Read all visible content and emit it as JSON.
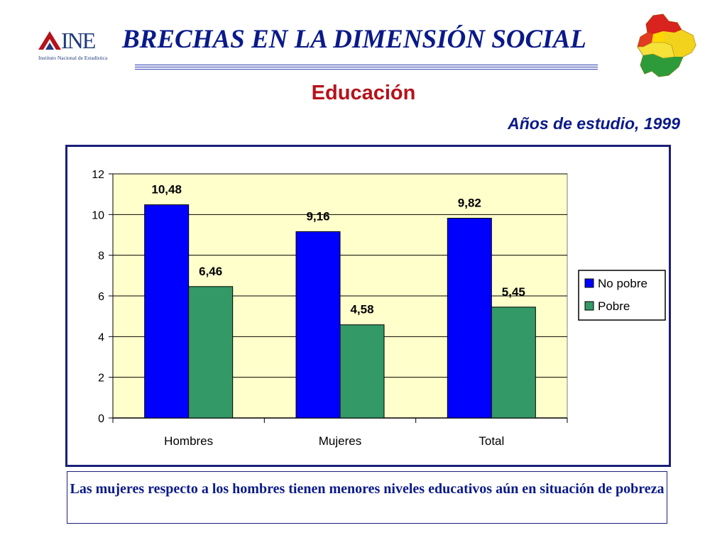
{
  "header": {
    "logo_text": "INE",
    "logo_subtitle": "Instituto Nacional de Estadística",
    "title": "BRECHAS EN LA DIMENSIÓN SOCIAL",
    "emblem": "bolivia-map-icon"
  },
  "section_title": "Educación",
  "caption": "Las mujeres respecto a los hombres tienen menores niveles educativos aún en situación de pobreza",
  "colors": {
    "title": "#0a1a8a",
    "section": "#b5121b",
    "plot_area": "#ffffcc",
    "no_pobre": "#0000ff",
    "pobre": "#339966",
    "frame": "#1a1f7a"
  },
  "chart_data": {
    "type": "bar",
    "title": "",
    "subtitle": "Años de estudio, 1999",
    "xlabel": "",
    "ylabel": "",
    "categories": [
      "Hombres",
      "Mujeres",
      "Total"
    ],
    "series": [
      {
        "name": "No pobre",
        "values": [
          10.48,
          9.16,
          9.82
        ],
        "labels": [
          "10,48",
          "9,16",
          "9,82"
        ]
      },
      {
        "name": "Pobre",
        "values": [
          6.46,
          4.58,
          5.45
        ],
        "labels": [
          "6,46",
          "4,58",
          "5,45"
        ]
      }
    ],
    "ylim": [
      0,
      12
    ],
    "yticks": [
      0,
      2,
      4,
      6,
      8,
      10,
      12
    ],
    "grid": true,
    "legend": "right"
  }
}
